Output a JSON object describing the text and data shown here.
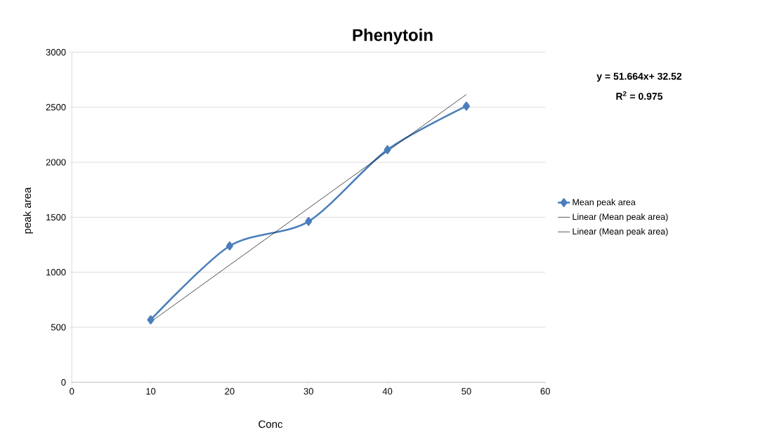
{
  "chart_data": {
    "type": "line",
    "title": "Phenytoin",
    "xlabel": "Conc",
    "ylabel": "peak area",
    "x": [
      10,
      20,
      30,
      40,
      50
    ],
    "series": [
      {
        "name": "Mean peak area",
        "color": "#4a7ebb",
        "marker": "diamond",
        "values": [
          568,
          1239,
          1462,
          2114,
          2510
        ]
      },
      {
        "name": "Linear (Mean peak area)",
        "color": "#000000",
        "marker": "none",
        "x": [
          10,
          50
        ],
        "values": [
          549,
          2616
        ]
      },
      {
        "name": "Linear (Mean peak area)",
        "color": "#000000",
        "marker": "none",
        "values": [
          null,
          null,
          null,
          null,
          null
        ]
      }
    ],
    "xlim": [
      0,
      60
    ],
    "xticks": [
      0,
      10,
      20,
      30,
      40,
      50,
      60
    ],
    "ylim": [
      0,
      3000
    ],
    "yticks": [
      0,
      500,
      1000,
      1500,
      2000,
      2500,
      3000
    ],
    "grid": "y",
    "legend": "right",
    "annotations": [
      "y = 51.664x+ 32.52",
      "R$^{2}$ = 0.975"
    ]
  }
}
